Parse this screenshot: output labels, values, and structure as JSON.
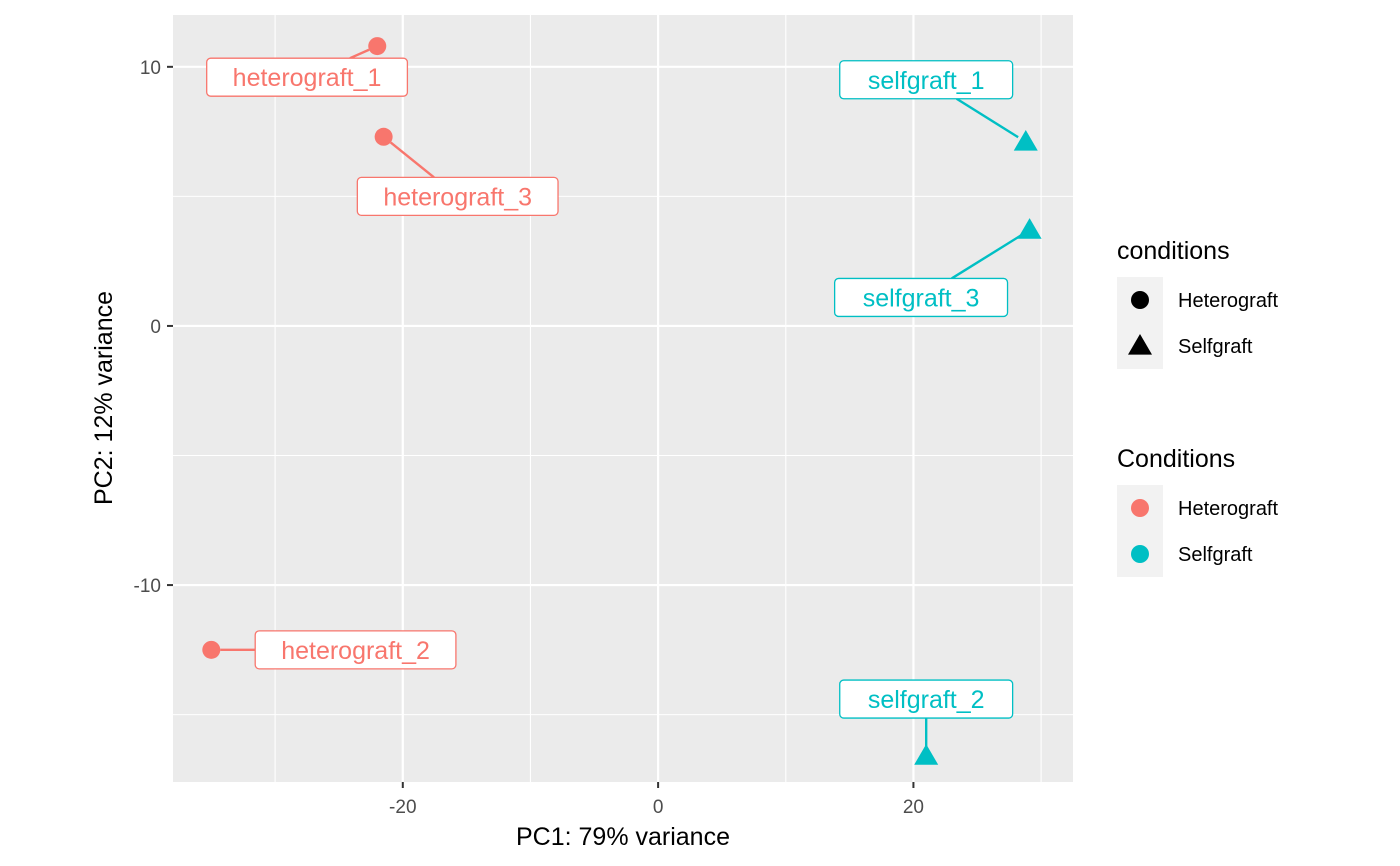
{
  "chart_data": {
    "type": "scatter",
    "title": "",
    "xlabel": "PC1: 79% variance",
    "ylabel": "PC2: 12% variance",
    "xlim": [
      -38.0,
      32.5
    ],
    "ylim": [
      -17.6,
      12.0
    ],
    "x_ticks": [
      -20,
      0,
      20
    ],
    "y_ticks": [
      -10,
      0,
      10
    ],
    "x_tick_labels": [
      "-20",
      "0",
      "20"
    ],
    "y_tick_labels": [
      "-10",
      "0",
      "10"
    ],
    "grid": true,
    "points": [
      {
        "label": "heterograft_1",
        "x": -22.0,
        "y": 10.8,
        "condition": "Heterograft"
      },
      {
        "label": "heterograft_3",
        "x": -21.5,
        "y": 7.3,
        "condition": "Heterograft"
      },
      {
        "label": "heterograft_2",
        "x": -35.0,
        "y": -12.5,
        "condition": "Heterograft"
      },
      {
        "label": "selfgraft_1",
        "x": 28.8,
        "y": 7.1,
        "condition": "Selfgraft"
      },
      {
        "label": "selfgraft_3",
        "x": 29.1,
        "y": 3.7,
        "condition": "Selfgraft"
      },
      {
        "label": "selfgraft_2",
        "x": 21.0,
        "y": -16.6,
        "condition": "Selfgraft"
      }
    ],
    "point_labels": [
      {
        "text": "heterograft_1",
        "x": -27.5,
        "y": 9.6
      },
      {
        "text": "heterograft_3",
        "x": -15.7,
        "y": 5.0
      },
      {
        "text": "heterograft_2",
        "x": -23.7,
        "y": -12.5
      },
      {
        "text": "selfgraft_1",
        "x": 21.0,
        "y": 9.5
      },
      {
        "text": "selfgraft_3",
        "x": 20.6,
        "y": 1.1
      },
      {
        "text": "selfgraft_2",
        "x": 21.0,
        "y": -14.4
      }
    ],
    "legends": [
      {
        "title": "conditions",
        "encoding": "shape",
        "items": [
          {
            "label": "Heterograft",
            "shape": "circle"
          },
          {
            "label": "Selfgraft",
            "shape": "triangle"
          }
        ]
      },
      {
        "title": "Conditions",
        "encoding": "color",
        "items": [
          {
            "label": "Heterograft",
            "color": "#F8766D"
          },
          {
            "label": "Selfgraft",
            "color": "#00BFC4"
          }
        ]
      }
    ],
    "legend_position": "right",
    "colors": {
      "Heterograft": "#F8766D",
      "Selfgraft": "#00BFC4"
    },
    "shapes": {
      "Heterograft": "circle",
      "Selfgraft": "triangle"
    }
  }
}
